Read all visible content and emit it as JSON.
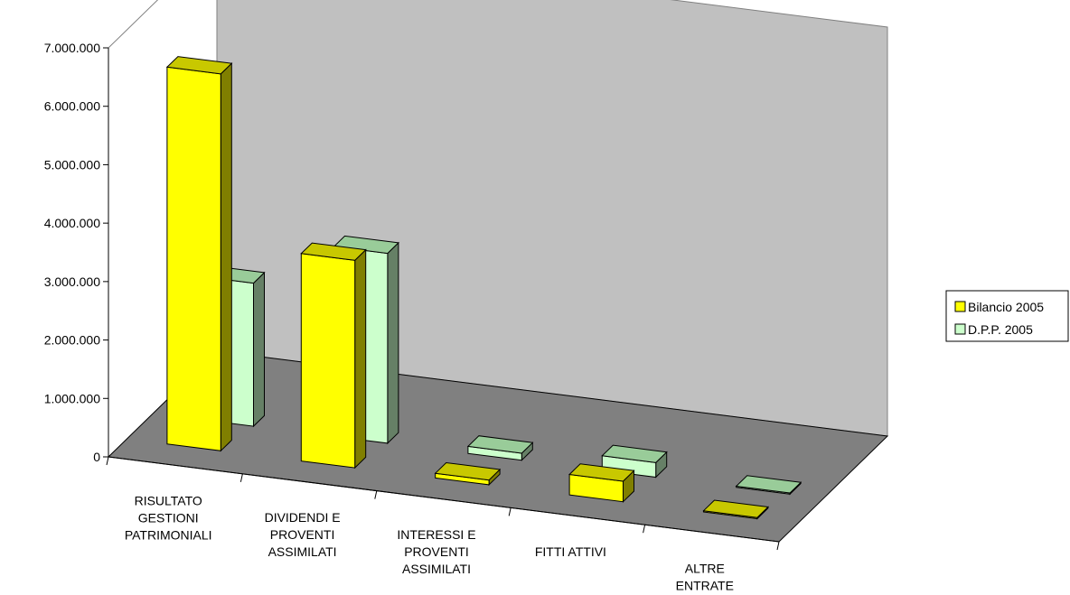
{
  "chart_data": {
    "type": "bar",
    "style": "3d-clustered-column",
    "categories": [
      [
        "RISULTATO",
        "GESTIONI",
        "PATRIMONIALI"
      ],
      [
        "DIVIDENDI E",
        "PROVENTI",
        "ASSIMILATI"
      ],
      [
        "INTERESSI E",
        "PROVENTI",
        "ASSIMILATI"
      ],
      [
        "FITTI ATTIVI"
      ],
      [
        "ALTRE",
        "ENTRATE"
      ]
    ],
    "series": [
      {
        "name": "Bilancio 2005",
        "values": [
          6450000,
          3550000,
          80000,
          350000,
          20000
        ],
        "color": "#ffff00",
        "side_color": "#807f00",
        "top_color": "#c8c800"
      },
      {
        "name": "D.P.P. 2005",
        "values": [
          2450000,
          3250000,
          120000,
          250000,
          20000
        ],
        "color": "#ccffcc",
        "side_color": "#668066",
        "top_color": "#99cc99"
      }
    ],
    "yticks": [
      "0",
      "1.000.000",
      "2.000.000",
      "3.000.000",
      "4.000.000",
      "5.000.000",
      "6.000.000",
      "7.000.000"
    ],
    "ylim": [
      0,
      7000000
    ],
    "legend_position": "right",
    "grid": false,
    "colors": {
      "back_wall": "#c0c0c0",
      "floor": "#808080",
      "axis": "#000000",
      "wall_edge": "#808080"
    }
  }
}
